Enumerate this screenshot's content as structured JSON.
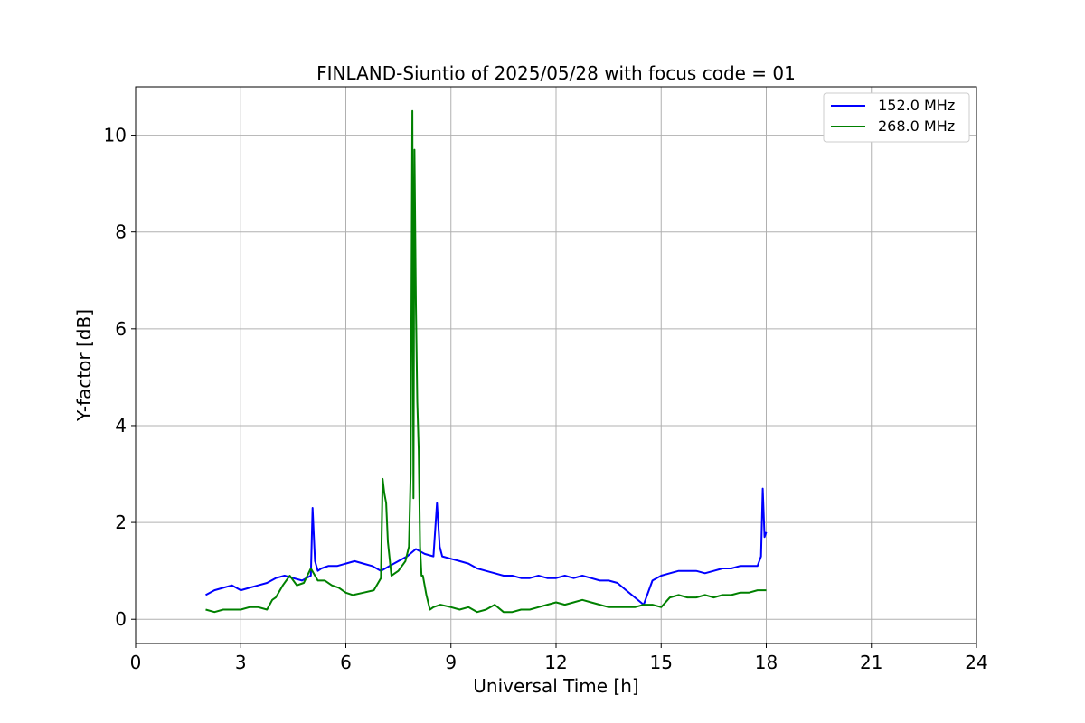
{
  "chart_data": {
    "type": "line",
    "title": "FINLAND-Siuntio of 2025/05/28 with focus code = 01",
    "xlabel": "Universal Time [h]",
    "ylabel": "Y-factor [dB]",
    "xlim": [
      0,
      24
    ],
    "ylim": [
      -0.5,
      11
    ],
    "xticks": [
      0,
      3,
      6,
      9,
      12,
      15,
      18,
      21,
      24
    ],
    "yticks": [
      0,
      2,
      4,
      6,
      8,
      10
    ],
    "grid": true,
    "legend_position": "top-right",
    "series": [
      {
        "name": " 152.0 MHz",
        "color": "#0000ff",
        "x": [
          2.0,
          2.25,
          2.5,
          2.75,
          3.0,
          3.25,
          3.5,
          3.75,
          4.0,
          4.25,
          4.5,
          4.75,
          5.0,
          5.05,
          5.12,
          5.2,
          5.3,
          5.5,
          5.75,
          6.0,
          6.25,
          6.5,
          6.75,
          7.0,
          7.25,
          7.5,
          7.75,
          8.0,
          8.25,
          8.5,
          8.6,
          8.68,
          8.75,
          9.0,
          9.25,
          9.5,
          9.75,
          10.0,
          10.25,
          10.5,
          10.75,
          11.0,
          11.25,
          11.5,
          11.75,
          12.0,
          12.25,
          12.5,
          12.75,
          13.0,
          13.25,
          13.5,
          13.75,
          14.0,
          14.25,
          14.5,
          14.75,
          15.0,
          15.25,
          15.5,
          15.75,
          16.0,
          16.25,
          16.5,
          16.75,
          17.0,
          17.25,
          17.5,
          17.75,
          17.85,
          17.9,
          17.95,
          18.0
        ],
        "y": [
          0.5,
          0.6,
          0.65,
          0.7,
          0.6,
          0.65,
          0.7,
          0.75,
          0.85,
          0.9,
          0.85,
          0.8,
          0.9,
          2.3,
          1.2,
          1.0,
          1.05,
          1.1,
          1.1,
          1.15,
          1.2,
          1.15,
          1.1,
          1.0,
          1.1,
          1.2,
          1.3,
          1.45,
          1.35,
          1.3,
          2.4,
          1.5,
          1.3,
          1.25,
          1.2,
          1.15,
          1.05,
          1.0,
          0.95,
          0.9,
          0.9,
          0.85,
          0.85,
          0.9,
          0.85,
          0.85,
          0.9,
          0.85,
          0.9,
          0.85,
          0.8,
          0.8,
          0.75,
          0.6,
          0.45,
          0.3,
          0.8,
          0.9,
          0.95,
          1.0,
          1.0,
          1.0,
          0.95,
          1.0,
          1.05,
          1.05,
          1.1,
          1.1,
          1.1,
          1.3,
          2.7,
          1.7,
          1.8
        ]
      },
      {
        "name": "268.0 MHz",
        "color": "#008000",
        "x": [
          2.0,
          2.25,
          2.5,
          2.75,
          3.0,
          3.25,
          3.5,
          3.75,
          3.9,
          4.0,
          4.2,
          4.4,
          4.6,
          4.8,
          5.0,
          5.2,
          5.4,
          5.6,
          5.8,
          6.0,
          6.2,
          6.5,
          6.8,
          7.0,
          7.05,
          7.1,
          7.15,
          7.2,
          7.3,
          7.5,
          7.7,
          7.8,
          7.85,
          7.9,
          7.93,
          7.96,
          8.0,
          8.04,
          8.08,
          8.12,
          8.16,
          8.2,
          8.3,
          8.4,
          8.5,
          8.7,
          9.0,
          9.25,
          9.5,
          9.75,
          10.0,
          10.25,
          10.5,
          10.75,
          11.0,
          11.25,
          11.5,
          11.75,
          12.0,
          12.25,
          12.5,
          12.75,
          13.0,
          13.25,
          13.5,
          13.75,
          14.0,
          14.25,
          14.5,
          14.75,
          15.0,
          15.25,
          15.5,
          15.75,
          16.0,
          16.25,
          16.5,
          16.75,
          17.0,
          17.25,
          17.5,
          17.75,
          18.0
        ],
        "y": [
          0.2,
          0.15,
          0.2,
          0.2,
          0.2,
          0.25,
          0.25,
          0.2,
          0.4,
          0.45,
          0.7,
          0.9,
          0.7,
          0.75,
          1.05,
          0.8,
          0.8,
          0.7,
          0.65,
          0.55,
          0.5,
          0.55,
          0.6,
          0.85,
          2.9,
          2.6,
          2.4,
          1.6,
          0.9,
          1.0,
          1.2,
          1.5,
          3.0,
          10.5,
          2.5,
          9.7,
          6.5,
          4.5,
          3.5,
          1.5,
          0.9,
          0.9,
          0.5,
          0.2,
          0.25,
          0.3,
          0.25,
          0.2,
          0.25,
          0.15,
          0.2,
          0.3,
          0.15,
          0.15,
          0.2,
          0.2,
          0.25,
          0.3,
          0.35,
          0.3,
          0.35,
          0.4,
          0.35,
          0.3,
          0.25,
          0.25,
          0.25,
          0.25,
          0.3,
          0.3,
          0.25,
          0.45,
          0.5,
          0.45,
          0.45,
          0.5,
          0.45,
          0.5,
          0.5,
          0.55,
          0.55,
          0.6,
          0.6
        ]
      }
    ]
  }
}
